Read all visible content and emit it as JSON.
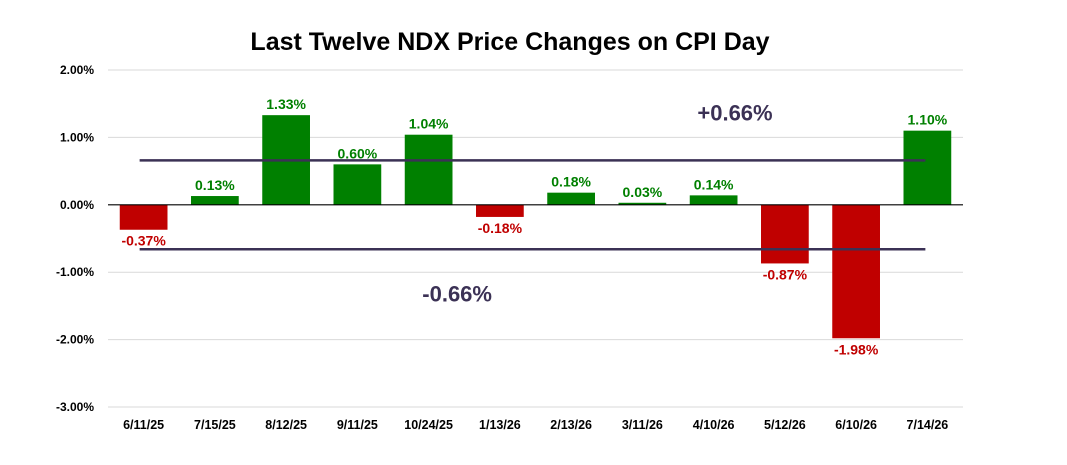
{
  "chart_data": {
    "type": "bar",
    "title": "Last Twelve NDX Price Changes on CPI Day",
    "xlabel": "",
    "ylabel": "",
    "ylim": [
      -3.0,
      2.0
    ],
    "y_ticks": [
      2.0,
      1.0,
      0.0,
      -1.0,
      -2.0,
      -3.0
    ],
    "y_tick_labels": [
      "2.00%",
      "1.00%",
      "0.00%",
      "-1.00%",
      "-2.00%",
      "-3.00%"
    ],
    "grid": true,
    "legend": "none",
    "categories": [
      "6/11/25",
      "7/15/25",
      "8/12/25",
      "9/11/25",
      "10/24/25",
      "1/13/26",
      "2/13/26",
      "3/11/26",
      "4/10/26",
      "5/12/26",
      "6/10/26",
      "7/14/26"
    ],
    "values": [
      -0.37,
      0.13,
      1.33,
      0.6,
      1.04,
      -0.18,
      0.18,
      0.03,
      0.14,
      -0.87,
      -1.98,
      1.1
    ],
    "data_labels": [
      "-0.37%",
      "0.13%",
      "1.33%",
      "0.60%",
      "1.04%",
      "-0.18%",
      "0.18%",
      "0.03%",
      "0.14%",
      "-0.87%",
      "-1.98%",
      "1.10%"
    ],
    "colors": {
      "positive": "#008000",
      "negative": "#c00000",
      "reference_line": "#3b3155",
      "grid": "#d9d9d9",
      "axis": "#000000"
    },
    "reference_lines": [
      {
        "value": 0.66,
        "label": "+0.66%"
      },
      {
        "value": -0.66,
        "label": "-0.66%"
      }
    ]
  }
}
